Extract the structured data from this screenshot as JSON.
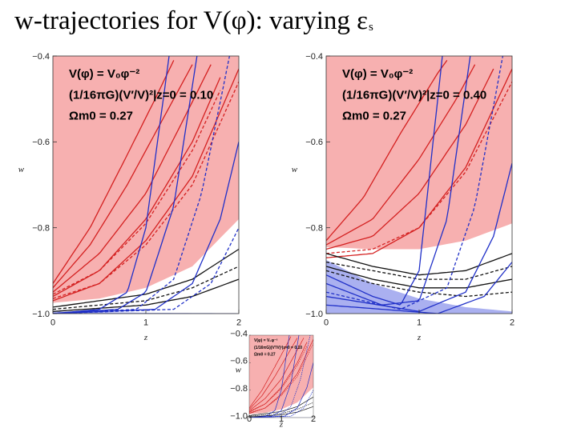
{
  "title": {
    "text": "w-trajectories for V(φ): varying ε",
    "subscript": "s"
  },
  "colors": {
    "red_region": "#f7b0b0",
    "blue_region": "#aab0f0",
    "red_line": "#d42020",
    "blue_line": "#2030c8",
    "black_line": "#111111"
  },
  "chart_data": [
    {
      "type": "line",
      "xlabel": "z",
      "ylabel": "w",
      "xlim": [
        0,
        2
      ],
      "ylim": [
        -1.0,
        -0.4
      ],
      "xticks": [
        "0",
        "1",
        "2"
      ],
      "yticks": [
        "−0.4",
        "−0.6",
        "−0.8",
        "−1.0"
      ],
      "annotation": {
        "line1": "V(φ) = V₀φ⁻²",
        "line2": "(1/16πG)(V′/V)²|z=0 = 0.10",
        "line3": "Ωm0 = 0.27"
      },
      "series": [
        {
          "color": "red",
          "style": "solid",
          "values": [
            [
              0,
              -0.97
            ],
            [
              0.5,
              -0.93
            ],
            [
              1,
              -0.83
            ],
            [
              1.5,
              -0.68
            ],
            [
              2,
              -0.43
            ]
          ]
        },
        {
          "color": "red",
          "style": "dashed",
          "values": [
            [
              0,
              -0.965
            ],
            [
              0.5,
              -0.93
            ],
            [
              1,
              -0.84
            ],
            [
              1.5,
              -0.7
            ],
            [
              2,
              -0.46
            ]
          ]
        },
        {
          "color": "red",
          "style": "solid",
          "values": [
            [
              0,
              -0.96
            ],
            [
              0.5,
              -0.9
            ],
            [
              1,
              -0.78
            ],
            [
              1.5,
              -0.6
            ],
            [
              1.8,
              -0.45
            ]
          ]
        },
        {
          "color": "red",
          "style": "dashed",
          "values": [
            [
              0,
              -0.955
            ],
            [
              0.5,
              -0.9
            ],
            [
              1,
              -0.79
            ],
            [
              1.5,
              -0.62
            ],
            [
              1.8,
              -0.48
            ]
          ]
        },
        {
          "color": "red",
          "style": "solid",
          "values": [
            [
              0,
              -0.95
            ],
            [
              0.5,
              -0.86
            ],
            [
              1,
              -0.72
            ],
            [
              1.4,
              -0.55
            ],
            [
              1.7,
              -0.42
            ]
          ]
        },
        {
          "color": "red",
          "style": "solid",
          "values": [
            [
              0,
              -0.94
            ],
            [
              0.4,
              -0.84
            ],
            [
              0.8,
              -0.7
            ],
            [
              1.2,
              -0.54
            ],
            [
              1.5,
              -0.42
            ]
          ]
        },
        {
          "color": "red",
          "style": "solid",
          "values": [
            [
              0,
              -0.93
            ],
            [
              0.4,
              -0.8
            ],
            [
              0.8,
              -0.63
            ],
            [
              1.1,
              -0.5
            ],
            [
              1.3,
              -0.41
            ]
          ]
        },
        {
          "color": "black",
          "style": "solid",
          "values": [
            [
              0,
              -0.995
            ],
            [
              1,
              -0.98
            ],
            [
              1.5,
              -0.96
            ],
            [
              2,
              -0.92
            ]
          ]
        },
        {
          "color": "black",
          "style": "dashed",
          "values": [
            [
              0,
              -0.99
            ],
            [
              1,
              -0.97
            ],
            [
              1.5,
              -0.94
            ],
            [
              2,
              -0.89
            ]
          ]
        },
        {
          "color": "black",
          "style": "solid",
          "values": [
            [
              0,
              -0.985
            ],
            [
              1,
              -0.955
            ],
            [
              1.5,
              -0.92
            ],
            [
              2,
              -0.85
            ]
          ]
        },
        {
          "color": "blue",
          "style": "solid",
          "values": [
            [
              0,
              -1.0
            ],
            [
              0.5,
              -0.99
            ],
            [
              0.8,
              -0.95
            ],
            [
              1.0,
              -0.8
            ],
            [
              1.25,
              -0.4
            ]
          ]
        },
        {
          "color": "blue",
          "style": "solid",
          "values": [
            [
              0,
              -1.0
            ],
            [
              0.7,
              -0.99
            ],
            [
              1.0,
              -0.95
            ],
            [
              1.3,
              -0.75
            ],
            [
              1.55,
              -0.4
            ]
          ]
        },
        {
          "color": "blue",
          "style": "dashed",
          "values": [
            [
              0,
              -1.0
            ],
            [
              0.9,
              -0.99
            ],
            [
              1.3,
              -0.92
            ],
            [
              1.6,
              -0.72
            ],
            [
              1.9,
              -0.4
            ]
          ]
        },
        {
          "color": "blue",
          "style": "solid",
          "values": [
            [
              0,
              -1.0
            ],
            [
              1.1,
              -0.99
            ],
            [
              1.5,
              -0.93
            ],
            [
              1.8,
              -0.78
            ],
            [
              2.0,
              -0.6
            ]
          ]
        },
        {
          "color": "blue",
          "style": "dashed",
          "values": [
            [
              0,
              -1.0
            ],
            [
              1.3,
              -0.99
            ],
            [
              1.7,
              -0.93
            ],
            [
              2.0,
              -0.8
            ]
          ]
        }
      ]
    },
    {
      "type": "line",
      "xlabel": "z",
      "ylabel": "w",
      "xlim": [
        0,
        2
      ],
      "ylim": [
        -1.0,
        -0.4
      ],
      "xticks": [
        "0",
        "1",
        "2"
      ],
      "yticks": [
        "−0.4",
        "−0.6",
        "−0.8",
        "−1.0"
      ],
      "annotation": {
        "line1": "V(φ) = V₀φ⁻²",
        "line2": "(1/16πG)(V′/V)²|z=0 = 0.40",
        "line3": "Ωm0 = 0.27"
      },
      "series": [
        {
          "color": "red",
          "style": "solid",
          "values": [
            [
              0,
              -0.87
            ],
            [
              0.5,
              -0.86
            ],
            [
              1,
              -0.8
            ],
            [
              1.5,
              -0.66
            ],
            [
              2,
              -0.43
            ]
          ]
        },
        {
          "color": "red",
          "style": "dashed",
          "values": [
            [
              0,
              -0.86
            ],
            [
              0.5,
              -0.85
            ],
            [
              1,
              -0.8
            ],
            [
              1.5,
              -0.67
            ],
            [
              2,
              -0.46
            ]
          ]
        },
        {
          "color": "red",
          "style": "solid",
          "values": [
            [
              0,
              -0.85
            ],
            [
              0.5,
              -0.82
            ],
            [
              1,
              -0.72
            ],
            [
              1.5,
              -0.56
            ],
            [
              1.8,
              -0.43
            ]
          ]
        },
        {
          "color": "red",
          "style": "solid",
          "values": [
            [
              0,
              -0.84
            ],
            [
              0.5,
              -0.78
            ],
            [
              1,
              -0.64
            ],
            [
              1.4,
              -0.5
            ],
            [
              1.6,
              -0.42
            ]
          ]
        },
        {
          "color": "red",
          "style": "solid",
          "values": [
            [
              0,
              -0.83
            ],
            [
              0.4,
              -0.73
            ],
            [
              0.8,
              -0.58
            ],
            [
              1.2,
              -0.44
            ],
            [
              1.3,
              -0.41
            ]
          ]
        },
        {
          "color": "black",
          "style": "solid",
          "values": [
            [
              0,
              -0.86
            ],
            [
              0.5,
              -0.89
            ],
            [
              1,
              -0.91
            ],
            [
              1.5,
              -0.9
            ],
            [
              2,
              -0.86
            ]
          ]
        },
        {
          "color": "black",
          "style": "dashed",
          "values": [
            [
              0,
              -0.88
            ],
            [
              0.5,
              -0.9
            ],
            [
              1,
              -0.92
            ],
            [
              1.5,
              -0.92
            ],
            [
              2,
              -0.89
            ]
          ]
        },
        {
          "color": "black",
          "style": "solid",
          "values": [
            [
              0,
              -0.89
            ],
            [
              0.5,
              -0.92
            ],
            [
              1,
              -0.94
            ],
            [
              1.5,
              -0.94
            ],
            [
              2,
              -0.92
            ]
          ]
        },
        {
          "color": "black",
          "style": "dashed",
          "values": [
            [
              0,
              -0.9
            ],
            [
              0.5,
              -0.93
            ],
            [
              1,
              -0.95
            ],
            [
              1.5,
              -0.96
            ],
            [
              2,
              -0.95
            ]
          ]
        },
        {
          "color": "blue",
          "style": "solid",
          "values": [
            [
              0,
              -0.91
            ],
            [
              0.5,
              -0.96
            ],
            [
              0.8,
              -0.98
            ],
            [
              1.0,
              -0.9
            ],
            [
              1.25,
              -0.4
            ]
          ]
        },
        {
          "color": "blue",
          "style": "solid",
          "values": [
            [
              0,
              -0.93
            ],
            [
              0.6,
              -0.98
            ],
            [
              1.0,
              -0.97
            ],
            [
              1.3,
              -0.78
            ],
            [
              1.55,
              -0.4
            ]
          ]
        },
        {
          "color": "blue",
          "style": "dashed",
          "values": [
            [
              0,
              -0.95
            ],
            [
              0.8,
              -0.99
            ],
            [
              1.3,
              -0.94
            ],
            [
              1.6,
              -0.75
            ],
            [
              1.9,
              -0.4
            ]
          ]
        },
        {
          "color": "blue",
          "style": "solid",
          "values": [
            [
              0,
              -0.96
            ],
            [
              1.0,
              -0.995
            ],
            [
              1.5,
              -0.95
            ],
            [
              1.8,
              -0.82
            ],
            [
              2.0,
              -0.65
            ]
          ]
        },
        {
          "color": "blue",
          "style": "solid",
          "values": [
            [
              0,
              -0.98
            ],
            [
              1.2,
              -1.0
            ],
            [
              1.7,
              -0.96
            ],
            [
              2.0,
              -0.88
            ]
          ]
        }
      ]
    }
  ]
}
